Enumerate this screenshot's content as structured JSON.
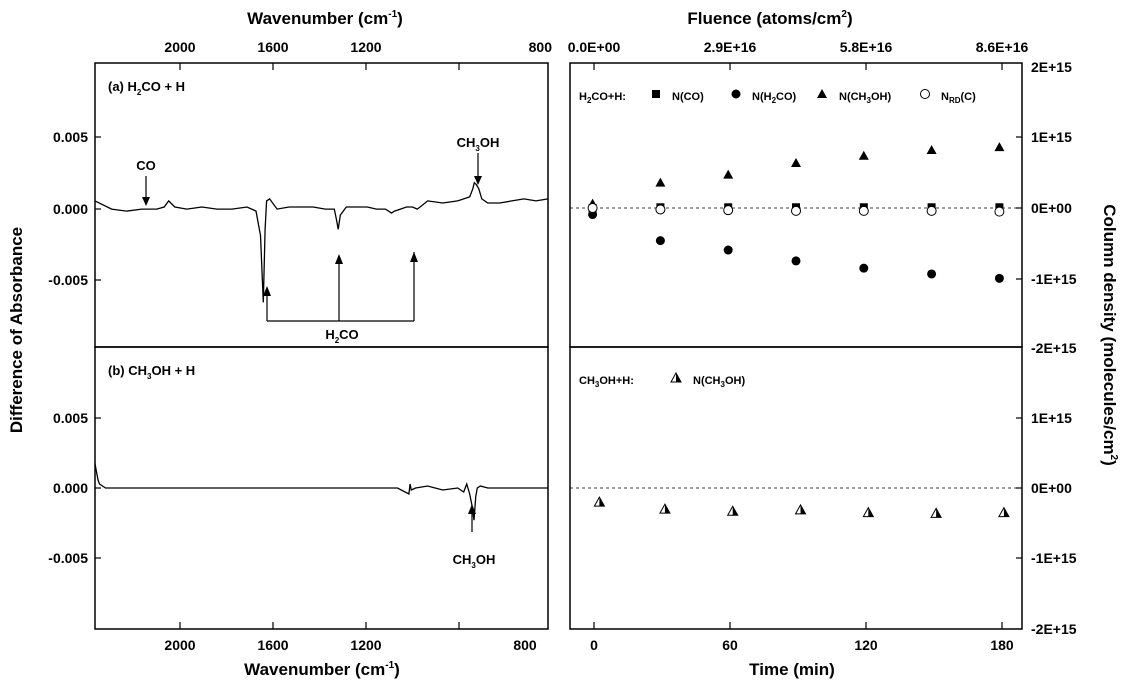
{
  "figure": {
    "top_axis_left": "Wavenumber (cm-1)",
    "bottom_axis_left": "Wavenumber (cm-1)",
    "left_axis": "Difference of Absorbance",
    "top_axis_right": "Fluence (atoms/cm2)",
    "bottom_axis_right": "Time (min)",
    "right_axis": "Column density (molecules/cm2)"
  },
  "chart_data": [
    {
      "type": "line",
      "panel": "(a) H2CO + H",
      "xlabel": "Wavenumber (cm-1)",
      "ylabel": "Difference of Absorbance",
      "xlim": [
        2305,
        800
      ],
      "ylim": [
        -0.007,
        0.007
      ],
      "x_ticks": [
        "2000",
        "1600",
        "1200",
        "800"
      ],
      "y_ticks": [
        "0.005",
        "0.000",
        "-0.005"
      ],
      "annotations": [
        "CO",
        "CH3OH",
        "H2CO"
      ],
      "series": [
        {
          "x": [
            2305,
            2250,
            2200,
            2150,
            2100,
            2075,
            2060,
            2040,
            2000,
            1950,
            1900,
            1850,
            1800,
            1770,
            1755,
            1746,
            1740,
            1735,
            1725,
            1700,
            1660,
            1620,
            1580,
            1540,
            1510,
            1503,
            1497,
            1490,
            1470,
            1430,
            1400,
            1370,
            1340,
            1320,
            1310,
            1290,
            1270,
            1250,
            1235,
            1225,
            1200,
            1150,
            1100,
            1060,
            1050,
            1045,
            1038,
            1030,
            1020,
            1000,
            960,
            920,
            880,
            840,
            800
          ],
          "y": [
            0.0002,
            -0.0002,
            -0.0003,
            -0.0002,
            -0.0002,
            -0.0001,
            0.0002,
            -0.0001,
            -0.0002,
            -0.0001,
            -0.0002,
            -0.0002,
            -0.0001,
            -0.0003,
            -0.0015,
            -0.0048,
            -0.0012,
            0.0002,
            0.0003,
            -0.0002,
            -0.0001,
            -0.0001,
            -0.0001,
            -0.0002,
            -0.0002,
            -0.0007,
            -0.0012,
            -0.0005,
            -0.0001,
            -0.0001,
            -0.0001,
            -0.0002,
            -0.0002,
            -0.0004,
            -0.0003,
            -0.0002,
            -0.0001,
            -0.0001,
            -0.0002,
            -0.0001,
            0.0002,
            0.0001,
            0.0002,
            0.0004,
            0.0008,
            0.0011,
            0.001,
            0.0008,
            0.0003,
            0.0001,
            0.0001,
            0.0002,
            0.0003,
            0.0002,
            0.0003
          ]
        }
      ]
    },
    {
      "type": "line",
      "panel": "(b) CH3OH + H",
      "xlabel": "Wavenumber (cm-1)",
      "ylabel": "Difference of Absorbance",
      "xlim": [
        2305,
        800
      ],
      "ylim": [
        -0.007,
        0.007
      ],
      "x_ticks": [
        "2000",
        "1600",
        "1200",
        "800"
      ],
      "y_ticks": [
        "0.005",
        "0.000",
        "-0.005"
      ],
      "annotations": [
        "CH3OH"
      ],
      "series": [
        {
          "x": [
            2305,
            2300,
            2295,
            2290,
            2280,
            2270,
            2250,
            2200,
            2100,
            2000,
            1900,
            1800,
            1700,
            1600,
            1500,
            1400,
            1300,
            1262,
            1258,
            1254,
            1240,
            1200,
            1150,
            1100,
            1080,
            1070,
            1060,
            1052,
            1046,
            1040,
            1035,
            1025,
            1000,
            960,
            920,
            880,
            840,
            800
          ],
          "y": [
            0.0012,
            0.0008,
            0.0004,
            0.0002,
            0.0001,
            0.0,
            0.0,
            0.0,
            0.0,
            0.0,
            0.0,
            0.0,
            0.0,
            0.0,
            0.0,
            0.0,
            0.0,
            -0.0003,
            0.0002,
            -0.0001,
            0.0,
            0.0001,
            -0.0001,
            0.0,
            -0.0002,
            0.0002,
            -0.0003,
            -0.0009,
            -0.0016,
            -0.0004,
            0.0,
            0.0001,
            0.0,
            0.0,
            0.0,
            0.0,
            0.0,
            0.0
          ]
        }
      ]
    },
    {
      "type": "scatter",
      "panel": "H2CO+H:",
      "xlabel": "Time (min)",
      "ylabel": "Column density (molecules/cm2)",
      "top_xlabel": "Fluence (atoms/cm2)",
      "xlim": [
        -10,
        190
      ],
      "ylim": [
        -2000000000000000.0,
        2000000000000000.0
      ],
      "x_ticks": [
        "0",
        "60",
        "120",
        "180"
      ],
      "top_x_ticks": [
        "0.0E+00",
        "2.9E+16",
        "5.8E+16",
        "8.6E+16"
      ],
      "y_ticks": [
        "2E+15",
        "1E+15",
        "0E+00",
        "-1E+15",
        "-2E+15"
      ],
      "x": [
        0,
        30,
        60,
        90,
        120,
        150,
        180
      ],
      "series": [
        {
          "name": "N(CO)",
          "marker": "square-filled",
          "values": [
            0.0,
            10000000000000.0,
            10000000000000.0,
            10000000000000.0,
            10000000000000.0,
            10000000000000.0,
            10000000000000.0
          ]
        },
        {
          "name": "N(H2CO)",
          "marker": "circle-filled",
          "values": [
            -90000000000000.0,
            -450000000000000.0,
            -580000000000000.0,
            -730000000000000.0,
            -830000000000000.0,
            -910000000000000.0,
            -970000000000000.0
          ]
        },
        {
          "name": "N(CH3OH)",
          "marker": "triangle-filled",
          "values": [
            60000000000000.0,
            350000000000000.0,
            460000000000000.0,
            620000000000000.0,
            720000000000000.0,
            800000000000000.0,
            840000000000000.0
          ]
        },
        {
          "name": "NRD(C)",
          "marker": "circle-open",
          "values": [
            0.0,
            -20000000000000.0,
            -30000000000000.0,
            -40000000000000.0,
            -40000000000000.0,
            -40000000000000.0,
            -50000000000000.0
          ]
        }
      ]
    },
    {
      "type": "scatter",
      "panel": "CH3OH+H:",
      "xlabel": "Time (min)",
      "ylabel": "Column density (molecules/cm2)",
      "xlim": [
        -10,
        190
      ],
      "ylim": [
        -2000000000000000.0,
        2000000000000000.0
      ],
      "x_ticks": [
        "0",
        "60",
        "120",
        "180"
      ],
      "y_ticks": [
        "2E+15",
        "1E+15",
        "0E+00",
        "-1E+15",
        "-2E+15"
      ],
      "x": [
        3,
        32,
        62,
        92,
        122,
        152,
        182
      ],
      "series": [
        {
          "name": "N(CH3OH)",
          "marker": "triangle-half",
          "values": [
            -200000000000000.0,
            -300000000000000.0,
            -330000000000000.0,
            -310000000000000.0,
            -350000000000000.0,
            -360000000000000.0,
            -350000000000000.0
          ]
        }
      ]
    }
  ]
}
